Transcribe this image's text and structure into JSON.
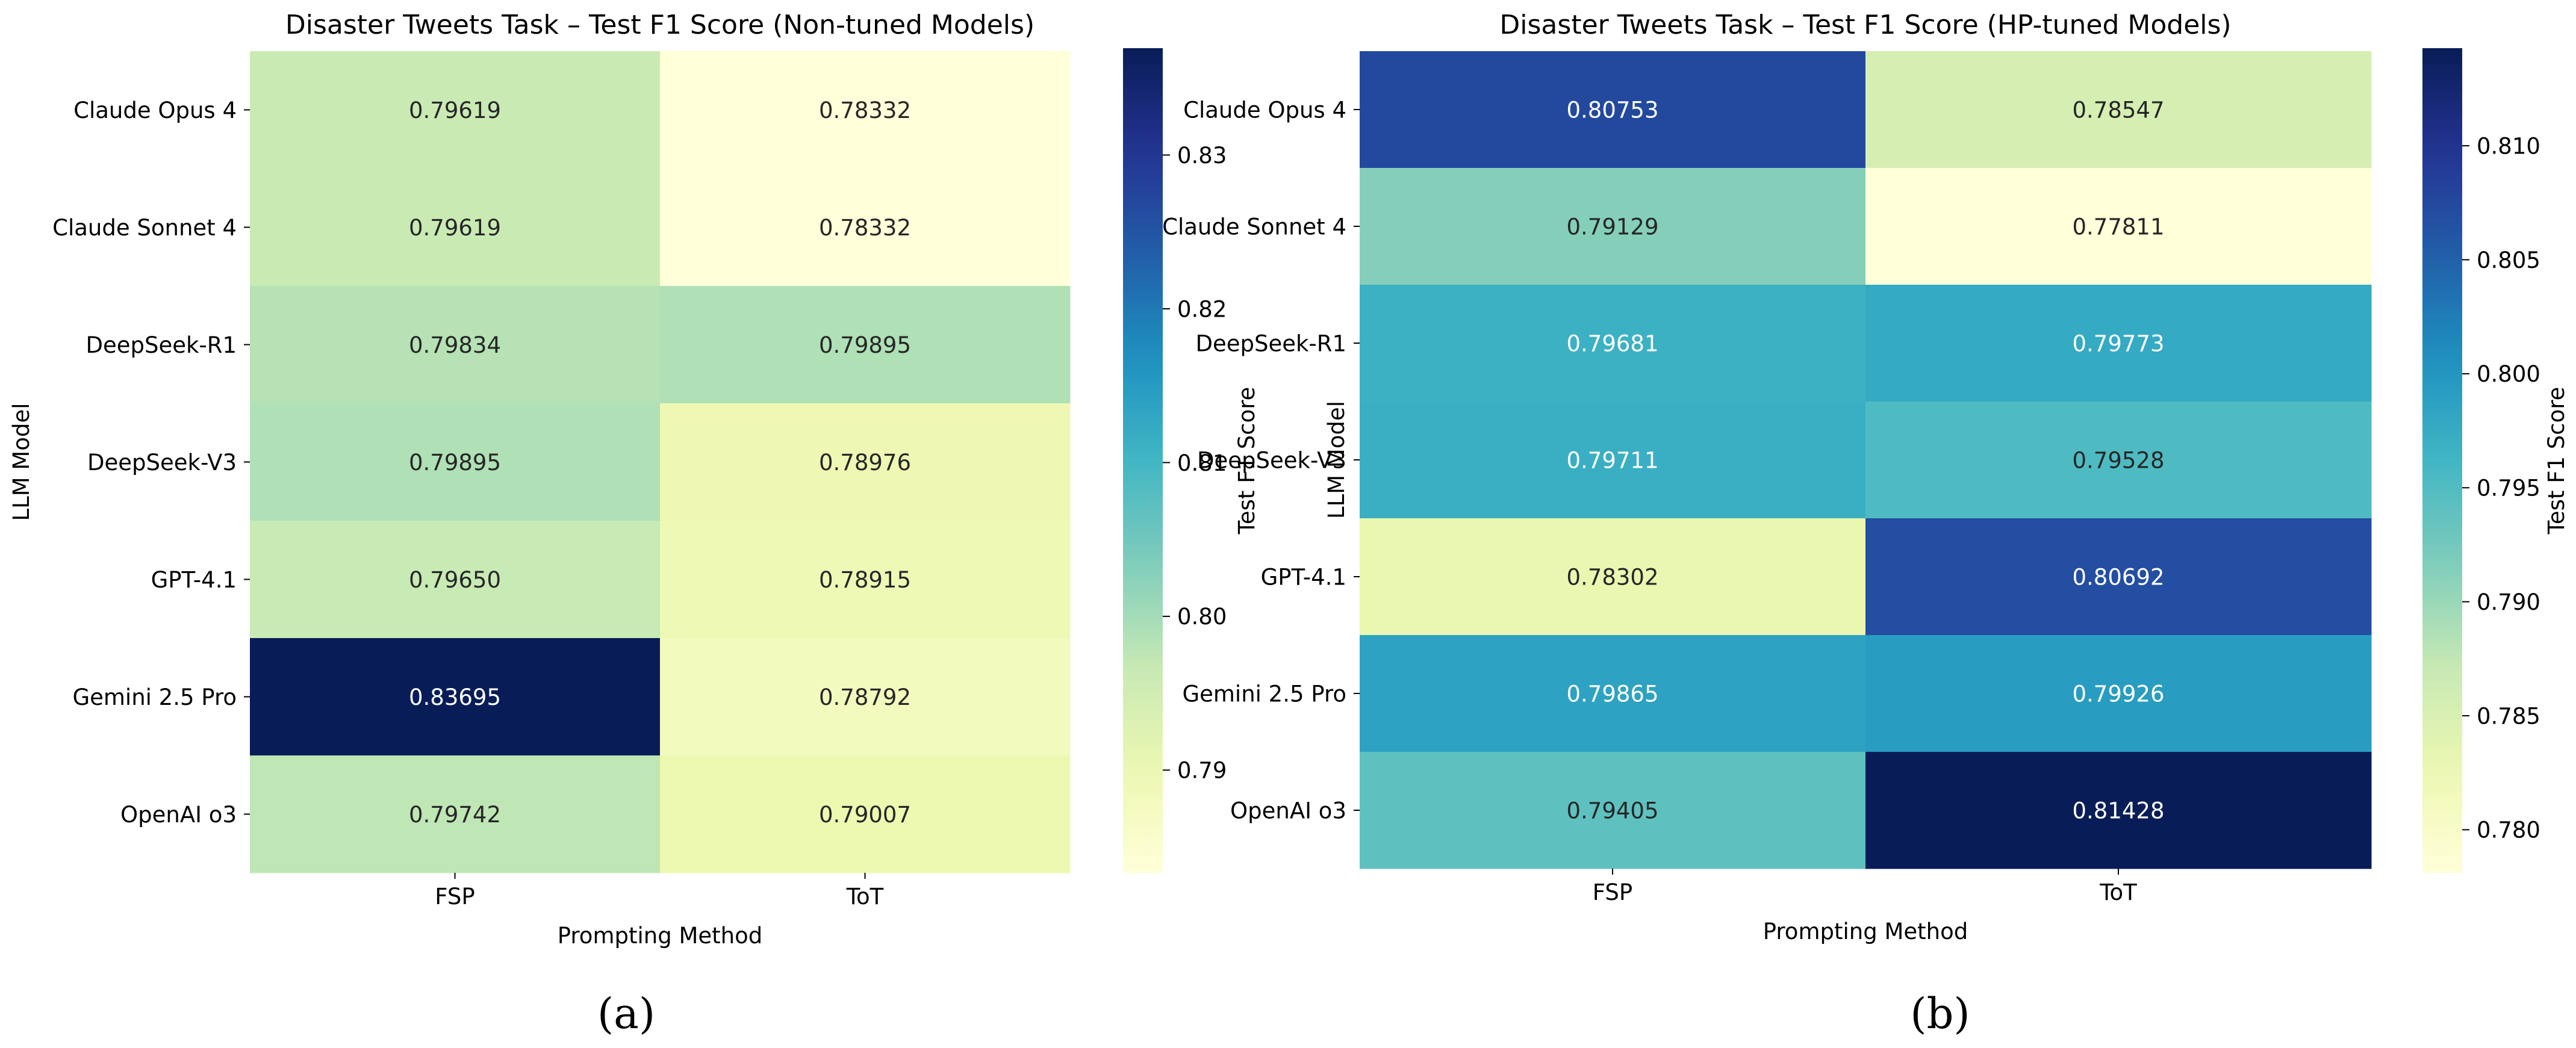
{
  "chart_data": [
    {
      "type": "heatmap",
      "panel_label": "(a)",
      "title": "Disaster Tweets Task – Test F1 Score (Non-tuned Models)",
      "xlabel": "Prompting Method",
      "ylabel": "LLM Model",
      "x_categories": [
        "FSP",
        "ToT"
      ],
      "y_categories": [
        "Claude Opus 4",
        "Claude Sonnet 4",
        "DeepSeek-R1",
        "DeepSeek-V3",
        "GPT-4.1",
        "Gemini 2.5 Pro",
        "OpenAI o3"
      ],
      "values": [
        [
          0.79619,
          0.78332
        ],
        [
          0.79619,
          0.78332
        ],
        [
          0.79834,
          0.79895
        ],
        [
          0.79895,
          0.78976
        ],
        [
          0.7965,
          0.78915
        ],
        [
          0.83695,
          0.78792
        ],
        [
          0.79742,
          0.79007
        ]
      ],
      "value_labels": [
        [
          "0.79619",
          "0.78332"
        ],
        [
          "0.79619",
          "0.78332"
        ],
        [
          "0.79834",
          "0.79895"
        ],
        [
          "0.79895",
          "0.78976"
        ],
        [
          "0.79650",
          "0.78915"
        ],
        [
          "0.83695",
          "0.78792"
        ],
        [
          "0.79742",
          "0.79007"
        ]
      ],
      "colorbar": {
        "label": "Test F1 Score",
        "range": [
          0.78332,
          0.83695
        ],
        "ticks": [
          0.79,
          0.8,
          0.81,
          0.82,
          0.83
        ],
        "tick_labels": [
          "0.79",
          "0.80",
          "0.81",
          "0.82",
          "0.83"
        ]
      },
      "colormap": "YlGnBu"
    },
    {
      "type": "heatmap",
      "panel_label": "(b)",
      "title": "Disaster Tweets Task – Test F1 Score (HP-tuned Models)",
      "xlabel": "Prompting Method",
      "ylabel": "LLM Model",
      "x_categories": [
        "FSP",
        "ToT"
      ],
      "y_categories": [
        "Claude Opus 4",
        "Claude Sonnet 4",
        "DeepSeek-R1",
        "DeepSeek-V3",
        "GPT-4.1",
        "Gemini 2.5 Pro",
        "OpenAI o3"
      ],
      "values": [
        [
          0.80753,
          0.78547
        ],
        [
          0.79129,
          0.77811
        ],
        [
          0.79681,
          0.79773
        ],
        [
          0.79711,
          0.79528
        ],
        [
          0.78302,
          0.80692
        ],
        [
          0.79865,
          0.79926
        ],
        [
          0.79405,
          0.81428
        ]
      ],
      "value_labels": [
        [
          "0.80753",
          "0.78547"
        ],
        [
          "0.79129",
          "0.77811"
        ],
        [
          "0.79681",
          "0.79773"
        ],
        [
          "0.79711",
          "0.79528"
        ],
        [
          "0.78302",
          "0.80692"
        ],
        [
          "0.79865",
          "0.79926"
        ],
        [
          "0.79405",
          "0.81428"
        ]
      ],
      "colorbar": {
        "label": "Test F1 Score",
        "range": [
          0.77811,
          0.81428
        ],
        "ticks": [
          0.78,
          0.785,
          0.79,
          0.795,
          0.8,
          0.805,
          0.81
        ],
        "tick_labels": [
          "0.780",
          "0.785",
          "0.790",
          "0.795",
          "0.800",
          "0.805",
          "0.810"
        ]
      },
      "colormap": "YlGnBu"
    }
  ]
}
